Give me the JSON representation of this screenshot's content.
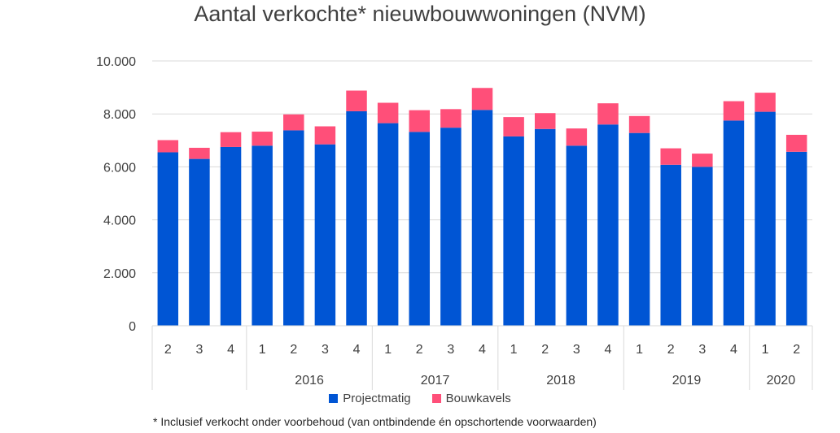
{
  "chart_data": {
    "type": "bar",
    "stacked": true,
    "title": "Aantal verkochte* nieuwbouwwoningen (NVM)",
    "ylim": [
      0,
      10000
    ],
    "yticks": [
      "0",
      "2.000",
      "4.000",
      "6.000",
      "8.000",
      "10.000"
    ],
    "ytick_values": [
      0,
      2000,
      4000,
      6000,
      8000,
      10000
    ],
    "grid": true,
    "legend_position": "bottom",
    "categories": [
      "2",
      "3",
      "4",
      "1",
      "2",
      "3",
      "4",
      "1",
      "2",
      "3",
      "4",
      "1",
      "2",
      "3",
      "4",
      "1",
      "2",
      "3",
      "4",
      "1",
      "2"
    ],
    "year_groups": [
      {
        "label": "",
        "count": 3
      },
      {
        "label": "2016",
        "count": 4
      },
      {
        "label": "2017",
        "count": 4
      },
      {
        "label": "2018",
        "count": 4
      },
      {
        "label": "2019",
        "count": 4
      },
      {
        "label": "2020",
        "count": 2
      }
    ],
    "series": [
      {
        "name": "Projectmatig",
        "color": "#0055D4",
        "values": [
          6550,
          6300,
          6750,
          6800,
          7380,
          6850,
          8100,
          7650,
          7320,
          7480,
          8150,
          7150,
          7430,
          6800,
          7600,
          7280,
          6080,
          6000,
          7750,
          8080,
          6570
        ]
      },
      {
        "name": "Bouwkavels",
        "color": "#FF4F79",
        "values": [
          460,
          420,
          560,
          530,
          600,
          680,
          780,
          770,
          820,
          700,
          830,
          730,
          600,
          650,
          800,
          640,
          620,
          500,
          730,
          720,
          640
        ]
      }
    ]
  },
  "footnote": "* Inclusief verkocht onder voorbehoud (van ontbindende én opschortende voorwaarden)"
}
